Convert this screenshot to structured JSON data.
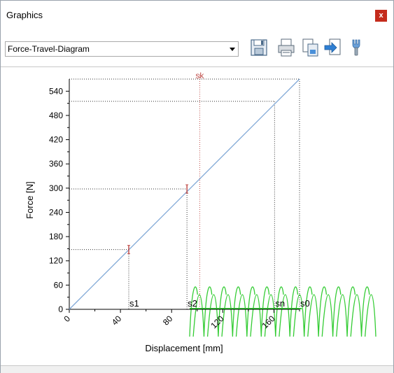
{
  "window": {
    "title": "Graphics",
    "close_label": "x"
  },
  "toolbar": {
    "diagram_select": "Force-Travel-Diagram",
    "icons": [
      "save-icon",
      "print-icon",
      "copy-icon",
      "export-icon",
      "settings-icon"
    ]
  },
  "chart_data": {
    "type": "line",
    "xlabel": "Displacement [mm]",
    "ylabel": "Force [N]",
    "xlim": [
      0,
      180
    ],
    "ylim": [
      0,
      570
    ],
    "x_ticks": [
      "0",
      "40",
      "80",
      "120",
      "160"
    ],
    "y_ticks": [
      "0",
      "60",
      "120",
      "180",
      "240",
      "300",
      "360",
      "420",
      "480",
      "540"
    ],
    "series": [
      {
        "x": [
          0,
          180
        ],
        "y": [
          0,
          570
        ],
        "color": "#7fa7d6"
      }
    ],
    "markers": [
      {
        "label": "s1",
        "x": 46.5,
        "y": 148
      },
      {
        "label": "s2",
        "x": 92,
        "y": 298
      },
      {
        "label": "sn",
        "x": 160.5,
        "y": 515
      },
      {
        "label": "s0",
        "x": 180,
        "y": 570
      }
    ],
    "critical_line": {
      "label": "sk",
      "x": 102,
      "color": "#c0504d"
    },
    "spring_color": "#33cc33"
  }
}
